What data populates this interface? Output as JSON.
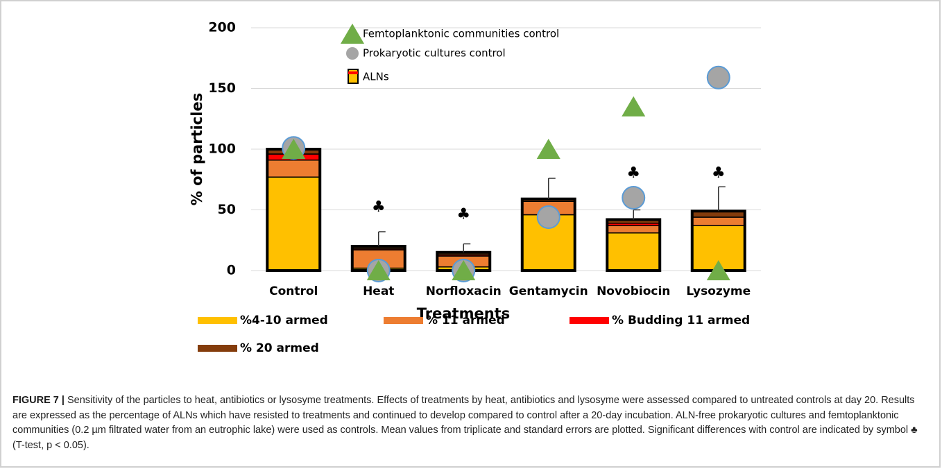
{
  "chart_data": {
    "type": "stacked_bar",
    "xlabel": "Treatments",
    "ylabel": "% of particles",
    "categories": [
      "Control",
      "Heat",
      "Norfloxacin",
      "Gentamycin",
      "Novobiocin",
      "Lysozyme"
    ],
    "series": [
      {
        "name": "%4-10 armed",
        "color": "#ffc000",
        "values": [
          77,
          2,
          3,
          46,
          31,
          37
        ]
      },
      {
        "name": "% 11 armed",
        "color": "#ed7d31",
        "values": [
          14,
          15,
          9,
          11,
          6,
          7
        ]
      },
      {
        "name": "% Budding 11 armed",
        "color": "#ff0000",
        "values": [
          5,
          1,
          1,
          0,
          2,
          0
        ]
      },
      {
        "name": "% 20 armed",
        "color": "#843c0c",
        "values": [
          4,
          2,
          2,
          2,
          3,
          5
        ]
      }
    ],
    "errors": [
      null,
      12,
      7,
      17,
      8,
      20
    ],
    "aln_legend": "ALNs",
    "points": [
      {
        "name": "Femtoplanktonic communities  control",
        "shape": "triangle",
        "color": "#70ad47",
        "values": [
          100,
          0,
          0,
          100,
          135,
          0
        ]
      },
      {
        "name": "Prokaryotic cultures control",
        "shape": "circle",
        "color": "#a5a5a5",
        "values": [
          101,
          0,
          0,
          44,
          60,
          159
        ]
      }
    ],
    "significance": {
      "symbol": "♣",
      "values": [
        null,
        52,
        46,
        null,
        80,
        80
      ]
    },
    "ylim": [
      0,
      200
    ],
    "yticks": [
      0,
      50,
      100,
      150,
      200
    ],
    "grid": true
  },
  "caption": {
    "label": "FIGURE 7 |",
    "text": "Sensitivity of the particles to heat, antibiotics or lysosyme treatments. Effects of treatments by heat, antibiotics and lysosyme were assessed compared to untreated controls at day 20. Results are expressed as the percentage of ALNs which have resisted to treatments and continued to develop compared to control after a 20-day incubation. ALN-free prokaryotic cultures and femtoplanktonic communities (0.2 µm filtrated water from an eutrophic lake) were used as controls. Mean values from triplicate and standard errors are plotted. Significant differences with control are indicated by symbol ♣ (T-test, p < 0.05)."
  }
}
